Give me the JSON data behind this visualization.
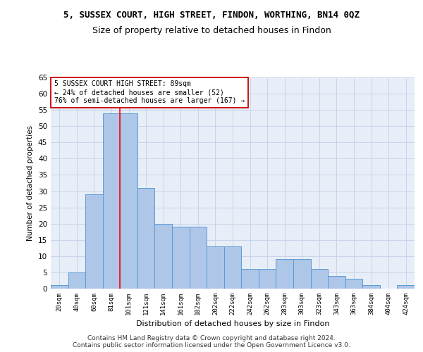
{
  "title": "5, SUSSEX COURT, HIGH STREET, FINDON, WORTHING, BN14 0QZ",
  "subtitle": "Size of property relative to detached houses in Findon",
  "xlabel": "Distribution of detached houses by size in Findon",
  "ylabel": "Number of detached properties",
  "footer_line1": "Contains HM Land Registry data © Crown copyright and database right 2024.",
  "footer_line2": "Contains public sector information licensed under the Open Government Licence v3.0.",
  "bar_labels": [
    "20sqm",
    "40sqm",
    "60sqm",
    "81sqm",
    "101sqm",
    "121sqm",
    "141sqm",
    "161sqm",
    "182sqm",
    "202sqm",
    "222sqm",
    "242sqm",
    "262sqm",
    "283sqm",
    "303sqm",
    "323sqm",
    "343sqm",
    "363sqm",
    "384sqm",
    "404sqm",
    "424sqm"
  ],
  "bar_values": [
    1,
    5,
    29,
    54,
    54,
    31,
    20,
    19,
    19,
    13,
    13,
    6,
    6,
    9,
    9,
    6,
    4,
    3,
    1,
    0,
    1
  ],
  "bar_color": "#aec6e8",
  "bar_edge_color": "#5b9bd5",
  "ylim": [
    0,
    65
  ],
  "yticks": [
    0,
    5,
    10,
    15,
    20,
    25,
    30,
    35,
    40,
    45,
    50,
    55,
    60,
    65
  ],
  "red_line_index": 3,
  "annotation_line1": "5 SUSSEX COURT HIGH STREET: 89sqm",
  "annotation_line2": "← 24% of detached houses are smaller (52)",
  "annotation_line3": "76% of semi-detached houses are larger (167) →",
  "annotation_box_color": "#ffffff",
  "annotation_box_edge": "#cc0000",
  "grid_color": "#c8d4e8",
  "background_color": "#e8eef8",
  "title_fontsize": 9,
  "subtitle_fontsize": 9
}
